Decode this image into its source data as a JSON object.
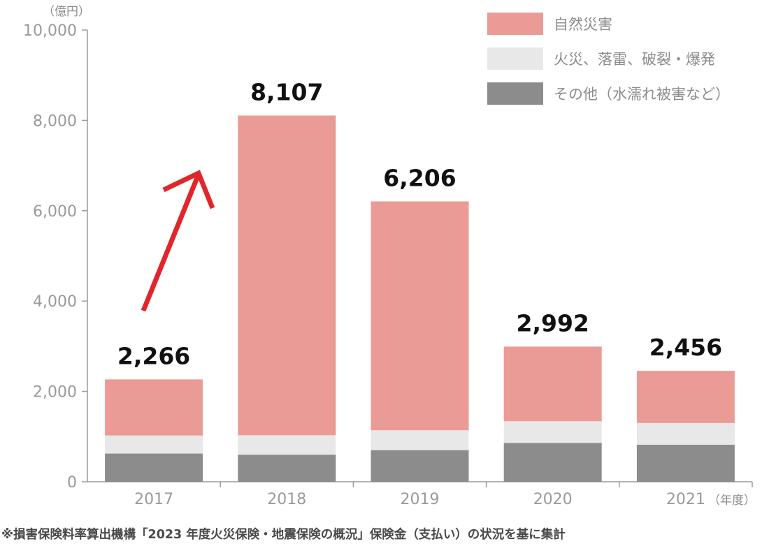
{
  "chart_data": {
    "type": "bar",
    "stacked": true,
    "y_unit": "（億円）",
    "x_unit": "（年度）",
    "categories": [
      "2017",
      "2018",
      "2019",
      "2020",
      "2021"
    ],
    "totals": [
      "2,266",
      "8,107",
      "6,206",
      "2,992",
      "2,456"
    ],
    "series": [
      {
        "name": "その他（水濡れ被害など）",
        "color": "#8c8c8c",
        "values": [
          625,
          600,
          700,
          860,
          820
        ]
      },
      {
        "name": "火災、落雷、破裂・爆発",
        "color": "#e8e8e8",
        "values": [
          400,
          430,
          440,
          480,
          480
        ]
      },
      {
        "name": "自然災害",
        "color": "#eb9b95",
        "values": [
          1241,
          7077,
          5066,
          1652,
          1156
        ]
      }
    ],
    "ylim": [
      0,
      10000
    ],
    "yticks": [
      0,
      2000,
      4000,
      6000,
      8000,
      10000
    ],
    "ytick_labels": [
      "0",
      "2,000",
      "4,000",
      "6,000",
      "8,000",
      "10,000"
    ],
    "legend_position": "top-right",
    "grid": false,
    "annotation": "red upward arrow from 2017 toward 2018",
    "accent_color": "#e0262b",
    "source_note": "※損害保険料率算出機構「2023 年度火災保険・地震保険の概況」保険金（支払い）の状況を基に集計"
  }
}
